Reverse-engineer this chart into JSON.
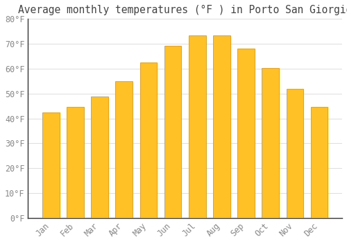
{
  "title": "Average monthly temperatures (°F ) in Porto San Giorgio",
  "months": [
    "Jan",
    "Feb",
    "Mar",
    "Apr",
    "May",
    "Jun",
    "Jul",
    "Aug",
    "Sep",
    "Oct",
    "Nov",
    "Dec"
  ],
  "values": [
    42.3,
    44.6,
    48.9,
    55.0,
    62.4,
    69.3,
    73.4,
    73.4,
    68.0,
    60.3,
    51.8,
    44.6
  ],
  "bar_color": "#FFC125",
  "bar_edge_color": "#E8960A",
  "background_color": "#FFFFFF",
  "grid_color": "#DDDDDD",
  "text_color": "#888888",
  "title_color": "#444444",
  "spine_color": "#333333",
  "ylim": [
    0,
    80
  ],
  "yticks": [
    0,
    10,
    20,
    30,
    40,
    50,
    60,
    70,
    80
  ],
  "ytick_labels": [
    "0°F",
    "10°F",
    "20°F",
    "30°F",
    "40°F",
    "50°F",
    "60°F",
    "70°F",
    "80°F"
  ],
  "font_family": "monospace",
  "title_fontsize": 10.5,
  "tick_fontsize": 8.5
}
